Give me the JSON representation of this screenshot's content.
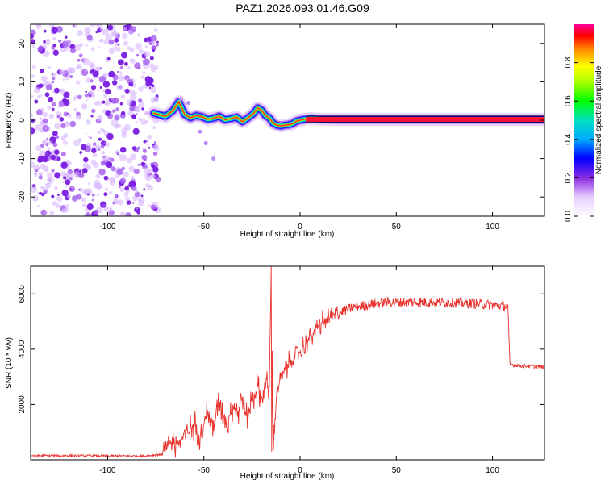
{
  "title": "PAZ1.2026.093.01.46.G09",
  "chart_data": [
    {
      "type": "heatmap",
      "title": "PAZ1.2026.093.01.46.G09",
      "xlabel": "Height of straight line (km)",
      "ylabel": "Frequency (Hz)",
      "xlim": [
        -140,
        127
      ],
      "ylim": [
        -25,
        25
      ],
      "xticks": [
        -100,
        -50,
        0,
        50,
        100
      ],
      "yticks": [
        -20,
        -10,
        0,
        10,
        20
      ],
      "xtick_labels": [
        "-100",
        "-50",
        "0",
        "50",
        "100"
      ],
      "ytick_labels": [
        "-20",
        "-10",
        "0",
        "10",
        "20"
      ],
      "noise_region_x": [
        -140,
        -75
      ],
      "signal_trace": {
        "x": [
          -76,
          -70,
          -66,
          -63,
          -60,
          -57,
          -54,
          -51,
          -48,
          -45,
          -42,
          -39,
          -36,
          -33,
          -30,
          -27,
          -24,
          -22,
          -20,
          -18,
          -16,
          -14,
          -12,
          -10,
          -8,
          -6,
          -4,
          -2,
          0,
          3,
          6,
          10,
          20,
          40,
          60,
          80,
          100,
          127
        ],
        "y": [
          1.8,
          1.0,
          2.5,
          4.8,
          1.5,
          0.6,
          1.2,
          0.9,
          0.2,
          0.5,
          1.0,
          0.1,
          0.4,
          0.8,
          -0.4,
          0.6,
          1.8,
          3.2,
          2.6,
          1.2,
          0.6,
          -0.8,
          -1.3,
          -1.5,
          -1.3,
          -1.2,
          -0.9,
          -0.3,
          0.0,
          0.3,
          0.4,
          0.3,
          0.2,
          0.2,
          0.2,
          0.2,
          0.2,
          0.2
        ]
      },
      "colorbar": {
        "label": "Normalized spectral amplitude",
        "range": [
          0.0,
          1.0
        ],
        "ticks": [
          0.0,
          0.2,
          0.4,
          0.6,
          0.8
        ],
        "tick_labels": [
          "0.0",
          "0.2",
          "0.4",
          "0.6",
          "0.8"
        ]
      }
    },
    {
      "type": "line",
      "xlabel": "Height of straight line (km)",
      "ylabel": "SNR (10 * v/v)",
      "xlim": [
        -140,
        127
      ],
      "ylim": [
        0,
        7000
      ],
      "xticks": [
        -100,
        -50,
        0,
        50,
        100
      ],
      "yticks": [
        2000,
        4000,
        6000
      ],
      "xtick_labels": [
        "-100",
        "-50",
        "0",
        "50",
        "100"
      ],
      "ytick_labels": [
        "2000",
        "4000",
        "6000"
      ],
      "color": "#e8322d",
      "series": [
        {
          "name": "SNR",
          "x": [
            -140,
            -120,
            -100,
            -80,
            -72,
            -68,
            -62,
            -58,
            -55,
            -52,
            -48,
            -45,
            -42,
            -38,
            -35,
            -32,
            -30,
            -28,
            -25,
            -22,
            -20,
            -18,
            -16,
            -15,
            -14,
            -12,
            -10,
            -8,
            -5,
            0,
            5,
            10,
            15,
            20,
            25,
            30,
            35,
            40,
            45,
            50,
            60,
            70,
            80,
            90,
            100,
            108,
            109,
            115,
            120,
            127
          ],
          "y": [
            150,
            150,
            140,
            140,
            200,
            550,
            700,
            1000,
            1300,
            900,
            1700,
            1200,
            2100,
            1300,
            2000,
            1700,
            2300,
            1500,
            2200,
            2600,
            2100,
            2800,
            2500,
            7000,
            300,
            2600,
            2900,
            3200,
            3600,
            3900,
            4400,
            4900,
            5100,
            5300,
            5450,
            5550,
            5600,
            5650,
            5700,
            5700,
            5700,
            5700,
            5680,
            5650,
            5600,
            5550,
            3450,
            3400,
            3380,
            3350
          ],
          "noise_amplitude_by_region": [
            {
              "x_range": [
                -140,
                -72
              ],
              "amplitude": 40
            },
            {
              "x_range": [
                -72,
                -15
              ],
              "amplitude": 700
            },
            {
              "x_range": [
                -15,
                20
              ],
              "amplitude": 550
            },
            {
              "x_range": [
                20,
                108
              ],
              "amplitude": 180
            },
            {
              "x_range": [
                108,
                127
              ],
              "amplitude": 70
            }
          ]
        }
      ]
    }
  ]
}
